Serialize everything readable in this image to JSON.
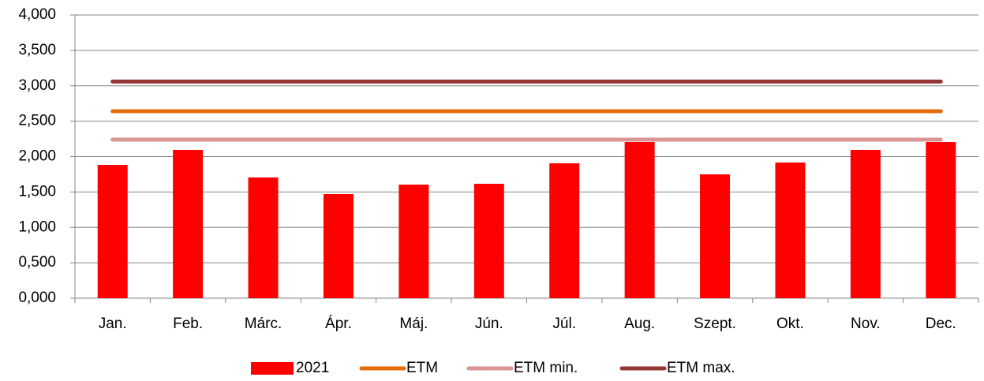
{
  "chart_data": {
    "type": "bar",
    "categories": [
      "Jan.",
      "Feb.",
      "Márc.",
      "Ápr.",
      "Máj.",
      "Jún.",
      "Júl.",
      "Aug.",
      "Szept.",
      "Okt.",
      "Nov.",
      "Dec."
    ],
    "series": [
      {
        "name": "2021",
        "type": "bar",
        "color": "#ff0000",
        "values": [
          1.883,
          2.095,
          1.705,
          1.471,
          1.604,
          1.616,
          1.905,
          2.206,
          1.749,
          1.916,
          2.095,
          2.206
        ]
      },
      {
        "name": "ETM",
        "type": "line",
        "color": "#e36c0a",
        "values": [
          2.64,
          2.64,
          2.64,
          2.64,
          2.64,
          2.64,
          2.64,
          2.64,
          2.64,
          2.64,
          2.64,
          2.64
        ]
      },
      {
        "name": "ETM min.",
        "type": "line",
        "color": "#d99594",
        "values": [
          2.24,
          2.24,
          2.24,
          2.24,
          2.24,
          2.24,
          2.24,
          2.24,
          2.24,
          2.24,
          2.24,
          2.24
        ]
      },
      {
        "name": "ETM max.",
        "type": "line",
        "color": "#943634",
        "values": [
          3.06,
          3.06,
          3.06,
          3.06,
          3.06,
          3.06,
          3.06,
          3.06,
          3.06,
          3.06,
          3.06,
          3.06
        ]
      }
    ],
    "ylim": [
      0,
      4
    ],
    "yticks": [
      {
        "value": 0,
        "label": "0,000"
      },
      {
        "value": 0.5,
        "label": "0,500"
      },
      {
        "value": 1,
        "label": "1,000"
      },
      {
        "value": 1.5,
        "label": "1,500"
      },
      {
        "value": 2,
        "label": "2,000"
      },
      {
        "value": 2.5,
        "label": "2,500"
      },
      {
        "value": 3,
        "label": "3,000"
      },
      {
        "value": 3.5,
        "label": "3,500"
      },
      {
        "value": 4,
        "label": "4,000"
      }
    ],
    "grid": true,
    "legend": "bottom"
  }
}
